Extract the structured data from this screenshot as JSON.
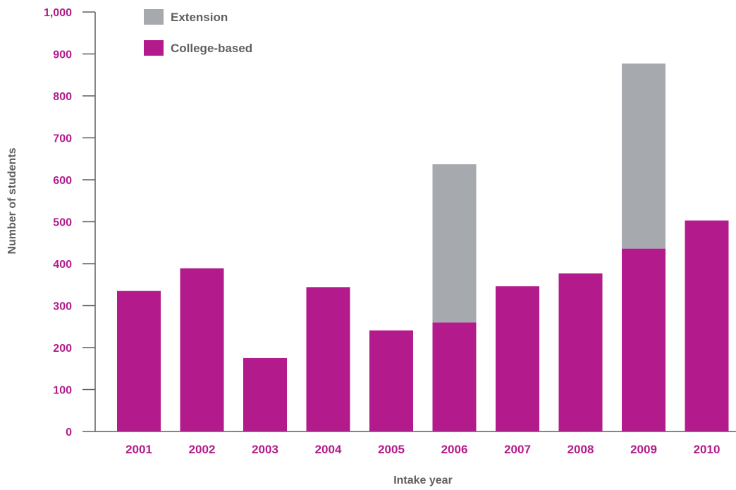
{
  "chart_data": {
    "type": "bar",
    "stacked": true,
    "title": "",
    "xlabel": "Intake year",
    "ylabel": "Number of students",
    "categories": [
      "2001",
      "2002",
      "2003",
      "2004",
      "2005",
      "2006",
      "2007",
      "2008",
      "2009",
      "2010"
    ],
    "series": [
      {
        "name": "College-based",
        "color": "#b31b8c",
        "values": [
          335,
          389,
          175,
          344,
          241,
          260,
          346,
          377,
          436,
          503
        ]
      },
      {
        "name": "Extension",
        "color": "#a6a9ad",
        "values": [
          0,
          0,
          0,
          0,
          0,
          377,
          0,
          0,
          441,
          0
        ]
      }
    ],
    "ylim": [
      0,
      1000
    ],
    "yticks": [
      0,
      100,
      200,
      300,
      400,
      500,
      600,
      700,
      800,
      900,
      1000
    ],
    "ytick_labels": [
      "0",
      "100",
      "200",
      "300",
      "400",
      "500",
      "600",
      "700",
      "800",
      "900",
      "1,000"
    ],
    "grid": false,
    "legend_position": "top-left",
    "legend_order": [
      "Extension",
      "College-based"
    ],
    "colors": {
      "tick_label": "#b31b8c",
      "axis_label": "#5f5f5f",
      "axis_line": "#5f5f5f"
    }
  }
}
